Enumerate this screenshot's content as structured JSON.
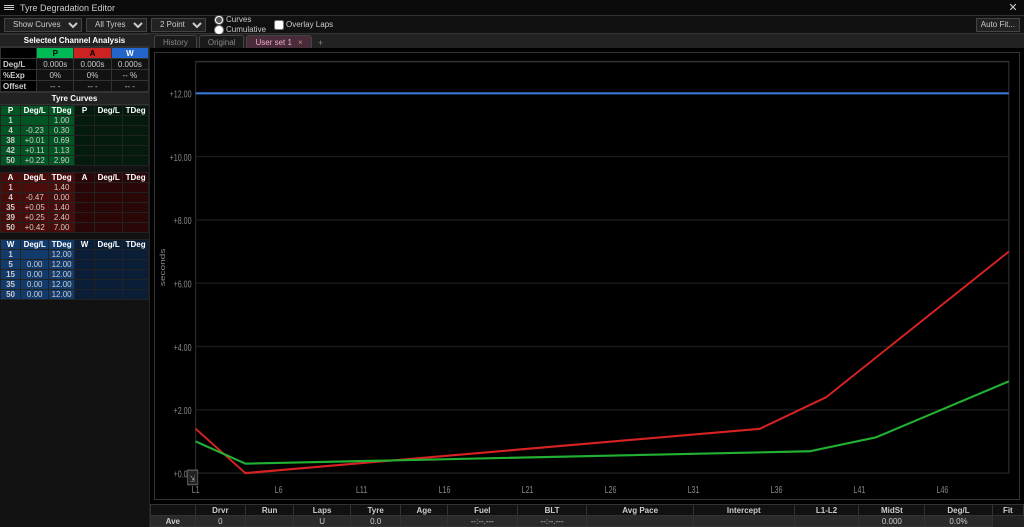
{
  "window": {
    "title": "Tyre Degradation Editor"
  },
  "toolbar": {
    "dropdown1": "Show Curves",
    "dropdown2": "All Tyres",
    "dropdown3": "2 Point",
    "radio_curves": "Curves",
    "radio_cumulative": "Cumulative",
    "check_overlay": "Overlay Laps",
    "auto_btn": "Auto Fit..."
  },
  "analysis": {
    "title": "Selected Channel Analysis",
    "cols": [
      "P",
      "A",
      "W"
    ],
    "rows": [
      {
        "label": "Deg/L",
        "p": "0.000s",
        "a": "0.000s",
        "w": "0.000s"
      },
      {
        "label": "%Exp",
        "p": "0%",
        "a": "0%",
        "w": "-- %"
      },
      {
        "label": "Offset",
        "p": "-- -",
        "a": "-- -",
        "w": "-- -"
      }
    ]
  },
  "curves": {
    "title": "Tyre Curves",
    "headers": [
      "Deg/L",
      "TDeg"
    ],
    "p": {
      "label": "P",
      "rows": [
        [
          "1",
          "",
          "1.00"
        ],
        [
          "4",
          "-0.23",
          "0.30"
        ],
        [
          "38",
          "+0.01",
          "0.69"
        ],
        [
          "42",
          "+0.11",
          "1.13"
        ],
        [
          "50",
          "+0.22",
          "2.90"
        ]
      ]
    },
    "a": {
      "label": "A",
      "rows": [
        [
          "1",
          "",
          "1.40"
        ],
        [
          "4",
          "-0.47",
          "0.00"
        ],
        [
          "35",
          "+0.05",
          "1.40"
        ],
        [
          "39",
          "+0.25",
          "2.40"
        ],
        [
          "50",
          "+0.42",
          "7.00"
        ]
      ]
    },
    "w": {
      "label": "W",
      "rows": [
        [
          "1",
          "",
          "12.00"
        ],
        [
          "5",
          "0.00",
          "12.00"
        ],
        [
          "15",
          "0.00",
          "12.00"
        ],
        [
          "35",
          "0.00",
          "12.00"
        ],
        [
          "50",
          "0.00",
          "12.00"
        ]
      ]
    }
  },
  "tabs": {
    "t1": "History",
    "t2": "Original",
    "t3": "User set 1"
  },
  "chart": {
    "ylabel": "seconds",
    "y_ticks": [
      "+12.00",
      "+10.00",
      "+8.00",
      "+6.00",
      "+4.00",
      "+2.00",
      "+0.00"
    ],
    "x_ticks": [
      "L1",
      "L6",
      "L11",
      "L16",
      "L21",
      "L26",
      "L31",
      "L36",
      "L41",
      "L46"
    ],
    "xlim": [
      1,
      50
    ],
    "ylim": [
      0,
      13
    ],
    "series": {
      "w": {
        "color": "#3a78d6",
        "points": [
          [
            1,
            12
          ],
          [
            50,
            12
          ]
        ]
      },
      "a": {
        "color": "#d62222",
        "points": [
          [
            1,
            1.4
          ],
          [
            4,
            0.0
          ],
          [
            35,
            1.4
          ],
          [
            39,
            2.4
          ],
          [
            50,
            7.0
          ]
        ]
      },
      "p": {
        "color": "#22b033",
        "points": [
          [
            1,
            1.0
          ],
          [
            4,
            0.3
          ],
          [
            38,
            0.69
          ],
          [
            42,
            1.13
          ],
          [
            50,
            2.9
          ]
        ]
      }
    }
  },
  "footer": {
    "headers": [
      "Drvr",
      "Run",
      "Laps",
      "Tyre",
      "Age",
      "Fuel",
      "BLT",
      "Avg Pace",
      "Intercept",
      "L1-L2",
      "MidSt",
      "Deg/L",
      "Fit"
    ],
    "row_label": "Ave",
    "row": [
      "0",
      "",
      "U",
      "0.0",
      "",
      "--:--.---",
      "--:--.---",
      "",
      "",
      "",
      "0.000",
      "0.0%"
    ]
  }
}
